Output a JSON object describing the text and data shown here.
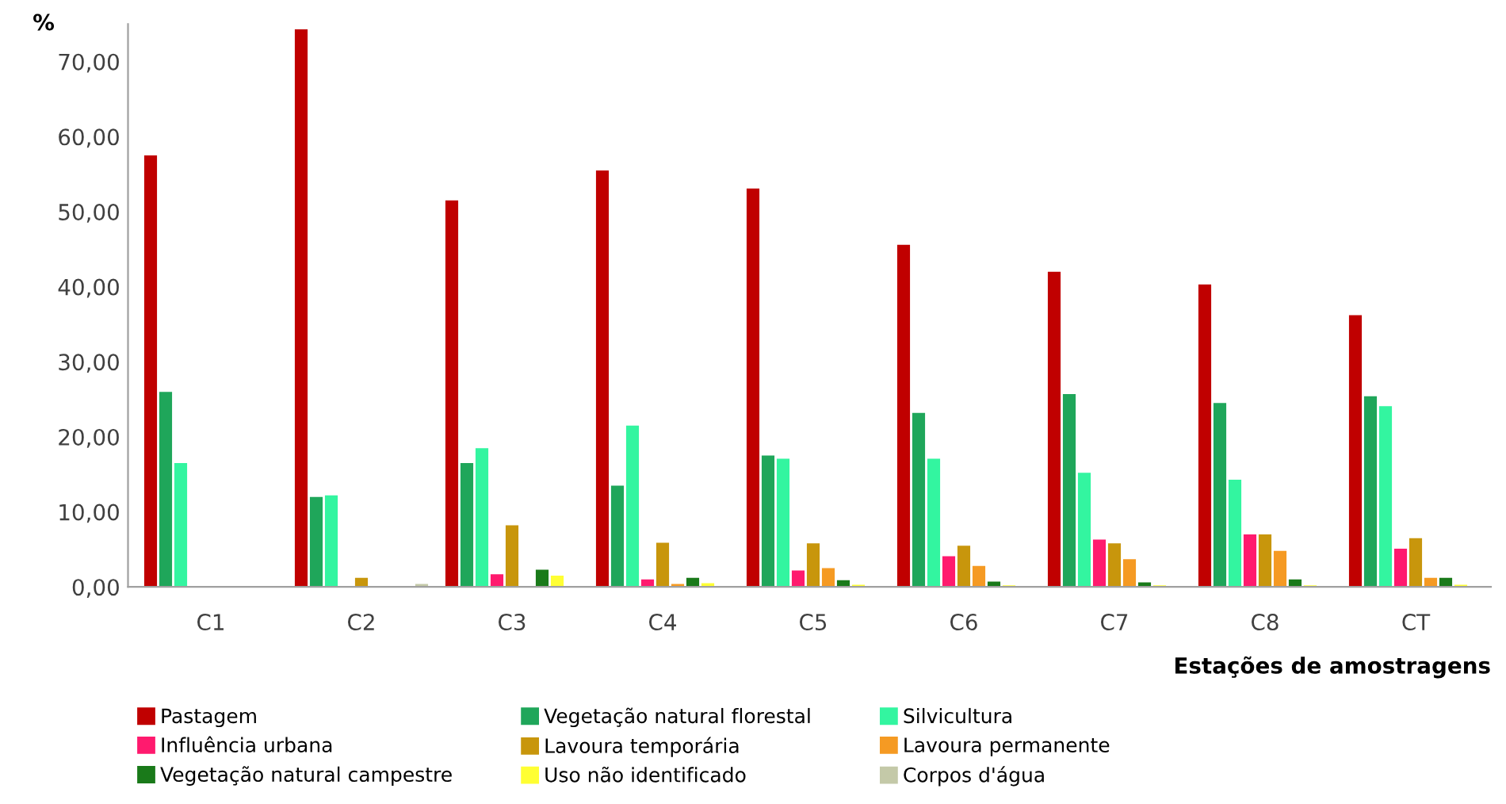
{
  "chart_data": {
    "type": "bar",
    "ylabel": "%",
    "xlabel": "Estações de amostragens",
    "categories": [
      "C1",
      "C2",
      "C3",
      "C4",
      "C5",
      "C6",
      "C7",
      "C8",
      "CT"
    ],
    "series": [
      {
        "name": "Pastagem",
        "color": "#c00000",
        "values": [
          57.5,
          74.3,
          51.5,
          55.5,
          53.1,
          45.6,
          42.0,
          40.3,
          36.2
        ]
      },
      {
        "name": "Vegetação natural florestal",
        "color": "#1fa65a",
        "values": [
          26.0,
          12.0,
          16.5,
          13.5,
          17.5,
          23.2,
          25.7,
          24.5,
          25.4
        ]
      },
      {
        "name": "Silvicultura",
        "color": "#33f5a0",
        "values": [
          16.5,
          12.2,
          18.5,
          21.5,
          17.1,
          17.1,
          15.2,
          14.3,
          24.1
        ]
      },
      {
        "name": "Influência urbana",
        "color": "#ff1a6e",
        "values": [
          0,
          0,
          1.7,
          1.0,
          2.2,
          4.1,
          6.3,
          7.0,
          5.1
        ]
      },
      {
        "name": "Lavoura temporária",
        "color": "#c8960c",
        "values": [
          0,
          1.2,
          8.2,
          5.9,
          5.8,
          5.5,
          5.8,
          7.0,
          6.5
        ]
      },
      {
        "name": "Lavoura permanente",
        "color": "#f59a23",
        "values": [
          0,
          0,
          0,
          0.4,
          2.5,
          2.8,
          3.7,
          4.8,
          1.2
        ]
      },
      {
        "name": "Vegetação natural campestre",
        "color": "#1a7a1a",
        "values": [
          0,
          0,
          2.3,
          1.2,
          0.9,
          0.7,
          0.6,
          1.0,
          1.2
        ]
      },
      {
        "name": "Uso não identificado",
        "color": "#ffff33",
        "values": [
          0,
          0,
          1.5,
          0.5,
          0.3,
          0.2,
          0.2,
          0.2,
          0.3
        ]
      },
      {
        "name": "Corpos d'água",
        "color": "#c4c9a8",
        "values": [
          0,
          0.4,
          0,
          0,
          0,
          0,
          0,
          0,
          0
        ]
      }
    ],
    "ylim": [
      0,
      75
    ],
    "yticks": [
      {
        "value": 0,
        "label": "0,00"
      },
      {
        "value": 10,
        "label": "10,00"
      },
      {
        "value": 20,
        "label": "20,00"
      },
      {
        "value": 30,
        "label": "30,00"
      },
      {
        "value": 40,
        "label": "40,00"
      },
      {
        "value": 50,
        "label": "50,00"
      },
      {
        "value": 60,
        "label": "60,00"
      },
      {
        "value": 70,
        "label": "70,00"
      }
    ],
    "grid": false,
    "legend": "bottom"
  }
}
